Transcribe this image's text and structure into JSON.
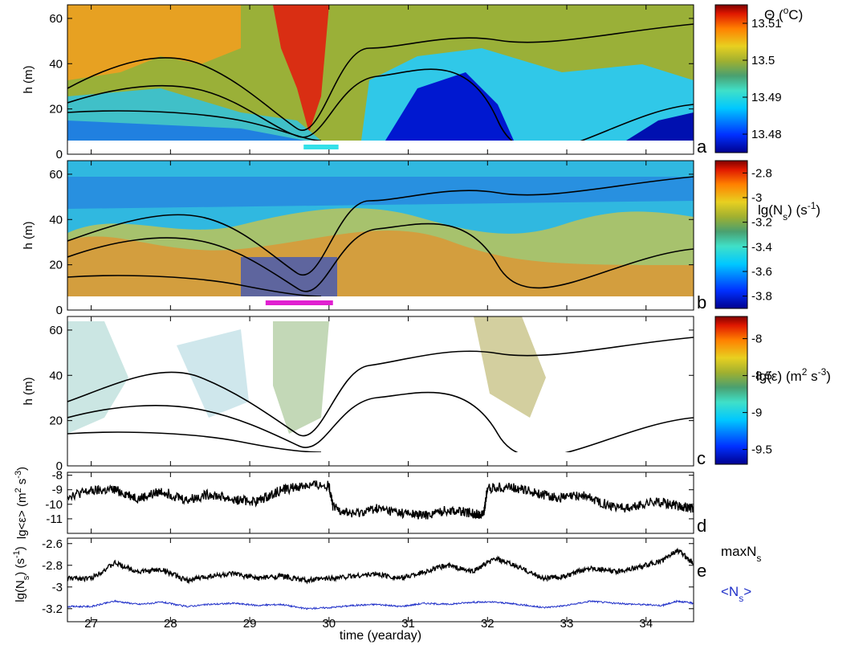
{
  "chart_data": [
    {
      "type": "heatmap",
      "panel_label": "a",
      "ylabel": "h (m)",
      "y_ticks": [
        0,
        20,
        40,
        60
      ],
      "ylim": [
        0,
        66
      ],
      "colorbar_label": "Θ (°C)",
      "colorbar_ticks": [
        "13.51",
        "13.5",
        "13.49",
        "13.48"
      ],
      "colorbar_range": [
        13.475,
        13.515
      ],
      "marker_bar": {
        "color": "#33e0e8",
        "x_range": [
          29.68,
          30.12
        ]
      },
      "colormap": [
        "#00008f",
        "#0040ff",
        "#00c8ff",
        "#40e0c0",
        "#4aa878",
        "#9ab02a",
        "#e0c820",
        "#ff8c00",
        "#e02000",
        "#7f0000"
      ]
    },
    {
      "type": "heatmap",
      "panel_label": "b",
      "ylabel": "h (m)",
      "y_ticks": [
        0,
        20,
        40,
        60
      ],
      "ylim": [
        0,
        66
      ],
      "colorbar_label": "lg(Ns) (s-1)",
      "colorbar_ticks": [
        "-2.8",
        "-3",
        "-3.2",
        "-3.4",
        "-3.6",
        "-3.8"
      ],
      "colorbar_range": [
        -3.9,
        -2.7
      ],
      "marker_bar": {
        "color": "#e020d0",
        "x_range": [
          29.2,
          30.05
        ]
      }
    },
    {
      "type": "heatmap",
      "panel_label": "c",
      "ylabel": "h (m)",
      "y_ticks": [
        0,
        20,
        40,
        60
      ],
      "ylim": [
        0,
        66
      ],
      "colorbar_label": "lg(ε) (m2 s-3)",
      "colorbar_ticks": [
        "-8",
        "-8.5",
        "-9",
        "-9.5"
      ],
      "colorbar_range": [
        -9.7,
        -7.7
      ]
    },
    {
      "type": "line",
      "panel_label": "d",
      "ylabel": "lg<ε> (m2 s-3)",
      "y_ticks": [
        -8,
        -9,
        -10,
        -11
      ],
      "ylim": [
        -12,
        -7.8
      ],
      "series": [
        {
          "color": "#000000",
          "x": [
            26.7,
            27.0,
            27.3,
            27.6,
            27.9,
            28.2,
            28.5,
            28.8,
            29.1,
            29.4,
            29.7,
            30.0,
            30.05,
            30.3,
            30.6,
            30.9,
            31.2,
            31.5,
            31.8,
            31.95,
            32.0,
            32.3,
            32.6,
            32.9,
            33.2,
            33.5,
            33.8,
            34.1,
            34.4,
            34.6
          ],
          "y": [
            -9.4,
            -9.1,
            -9.0,
            -9.6,
            -9.1,
            -9.7,
            -9.3,
            -9.7,
            -9.8,
            -9.0,
            -8.7,
            -8.7,
            -10.2,
            -10.7,
            -10.3,
            -10.6,
            -10.8,
            -10.4,
            -10.6,
            -10.7,
            -8.9,
            -8.8,
            -9.2,
            -9.6,
            -9.4,
            -10.0,
            -10.3,
            -9.8,
            -10.1,
            -10.3
          ]
        }
      ]
    },
    {
      "type": "line",
      "panel_label": "e",
      "ylabel": "lg(Ns) (s-1)",
      "y_ticks": [
        -2.6,
        -2.8,
        -3,
        -3.2
      ],
      "ylim": [
        -3.32,
        -2.55
      ],
      "series": [
        {
          "name": "maxNs",
          "color": "#000000",
          "x": [
            26.7,
            27.0,
            27.3,
            27.6,
            27.9,
            28.2,
            28.5,
            28.8,
            29.1,
            29.4,
            29.7,
            30.0,
            30.3,
            30.6,
            30.9,
            31.2,
            31.5,
            31.8,
            32.1,
            32.4,
            32.7,
            33.0,
            33.3,
            33.6,
            33.9,
            34.2,
            34.4,
            34.6
          ],
          "y": [
            -2.92,
            -2.92,
            -2.78,
            -2.86,
            -2.84,
            -2.94,
            -2.9,
            -2.88,
            -2.92,
            -2.9,
            -2.94,
            -2.92,
            -2.9,
            -2.88,
            -2.92,
            -2.86,
            -2.8,
            -2.86,
            -2.74,
            -2.82,
            -2.92,
            -2.9,
            -2.82,
            -2.86,
            -2.82,
            -2.76,
            -2.66,
            -2.78
          ]
        },
        {
          "name": "<Ns>",
          "color": "#1f2fc8",
          "x": [
            26.7,
            27.0,
            27.3,
            27.6,
            27.9,
            28.2,
            28.5,
            28.8,
            29.1,
            29.4,
            29.7,
            30.0,
            30.3,
            30.6,
            30.9,
            31.2,
            31.5,
            31.8,
            32.1,
            32.4,
            32.7,
            33.0,
            33.3,
            33.6,
            33.9,
            34.2,
            34.4,
            34.6
          ],
          "y": [
            -3.18,
            -3.18,
            -3.13,
            -3.16,
            -3.14,
            -3.18,
            -3.16,
            -3.15,
            -3.17,
            -3.16,
            -3.2,
            -3.19,
            -3.17,
            -3.16,
            -3.18,
            -3.15,
            -3.16,
            -3.14,
            -3.14,
            -3.16,
            -3.19,
            -3.17,
            -3.13,
            -3.15,
            -3.16,
            -3.17,
            -3.13,
            -3.15
          ]
        }
      ]
    }
  ],
  "x_axis": {
    "label": "time (yearday)",
    "xlim": [
      26.7,
      34.6
    ],
    "ticks": [
      27,
      28,
      29,
      30,
      31,
      32,
      33,
      34
    ]
  }
}
